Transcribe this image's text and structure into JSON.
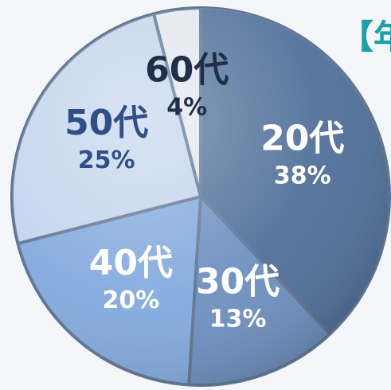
{
  "heading": "【年",
  "colors": {
    "background": "#f4f6f9",
    "heading": "#1b9fa8",
    "outline": "#5d7593"
  },
  "chart_data": {
    "type": "pie",
    "slices": [
      {
        "label": "20代",
        "percent_text": "38%",
        "value": 38,
        "color": "#4f6f99",
        "text_color": "#ffffff"
      },
      {
        "label": "30代",
        "percent_text": "13%",
        "value": 13,
        "color": "#6d8fbf",
        "text_color": "#ffffff"
      },
      {
        "label": "40代",
        "percent_text": "20%",
        "value": 20,
        "color": "#82a9dd",
        "text_color": "#ffffff"
      },
      {
        "label": "50代",
        "percent_text": "25%",
        "value": 25,
        "color": "#c3d4ed",
        "text_color": "#2f4f86"
      },
      {
        "label": "60代",
        "percent_text": "4%",
        "value": 4,
        "color": "#e2e7ef",
        "text_color": "#1f2f47"
      }
    ]
  }
}
